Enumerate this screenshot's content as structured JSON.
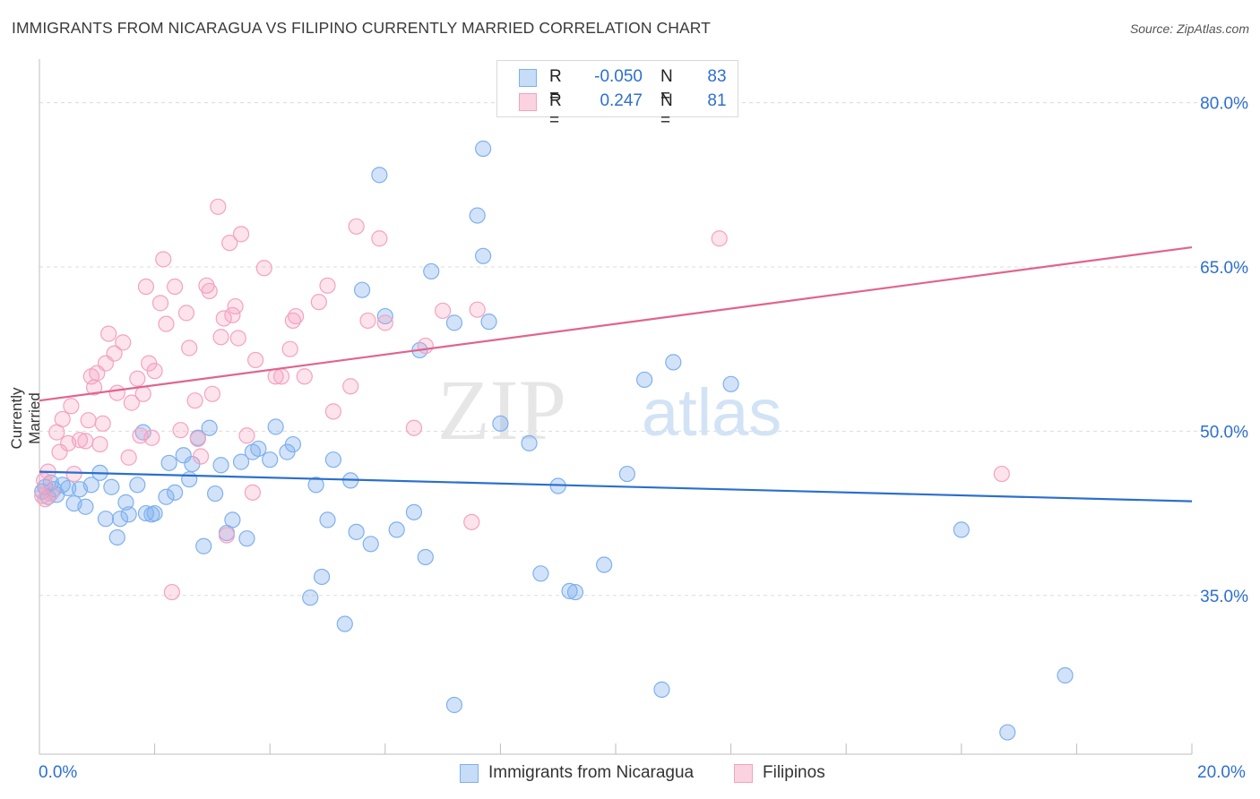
{
  "header": {
    "title": "IMMIGRANTS FROM NICARAGUA VS FILIPINO CURRENTLY MARRIED CORRELATION CHART",
    "source": "Source: ZipAtlas.com"
  },
  "watermark": {
    "zip": "ZIP",
    "atlas": "atlas"
  },
  "legend": {
    "rows": [
      {
        "r_label": "R =",
        "r_value": "-0.050",
        "n_label": "N =",
        "n_value": "83",
        "color": "#7fb0ee"
      },
      {
        "r_label": "R =",
        "r_value": "0.247",
        "n_label": "N =",
        "n_value": "81",
        "color": "#f4a3bf"
      }
    ]
  },
  "bottom_legend": [
    {
      "label": "Immigrants from Nicaragua",
      "color": "#7fb0ee"
    },
    {
      "label": "Filipinos",
      "color": "#f4a3bf"
    }
  ],
  "chart_data": {
    "type": "scatter",
    "title": "IMMIGRANTS FROM NICARAGUA VS FILIPINO CURRENTLY MARRIED CORRELATION CHART",
    "xlabel": "",
    "ylabel": "Currently Married",
    "xlim": [
      0,
      20
    ],
    "ylim": [
      20.5,
      83
    ],
    "x_tick_labels": [
      "0.0%",
      "20.0%"
    ],
    "y_ticks": [
      35,
      50,
      65,
      80
    ],
    "y_tick_labels": [
      "35.0%",
      "50.0%",
      "65.0%",
      "80.0%"
    ],
    "grid": true,
    "series": [
      {
        "name": "Immigrants from Nicaragua",
        "color": "#7fb0ee",
        "line_color": "#2a6fcf",
        "trend": [
          [
            0,
            46.3
          ],
          [
            20,
            43.6
          ]
        ],
        "points": [
          [
            0.1,
            44.9
          ],
          [
            0.15,
            44.0
          ],
          [
            0.2,
            45.3
          ],
          [
            0.25,
            44.7
          ],
          [
            0.3,
            44.2
          ],
          [
            0.4,
            45.1
          ],
          [
            0.5,
            44.8
          ],
          [
            0.6,
            43.4
          ],
          [
            0.7,
            44.7
          ],
          [
            0.8,
            43.1
          ],
          [
            0.9,
            45.1
          ],
          [
            1.05,
            46.2
          ],
          [
            1.15,
            42.0
          ],
          [
            1.25,
            44.9
          ],
          [
            1.35,
            40.3
          ],
          [
            1.4,
            42.0
          ],
          [
            1.5,
            43.5
          ],
          [
            1.55,
            42.4
          ],
          [
            1.7,
            45.1
          ],
          [
            1.8,
            49.9
          ],
          [
            1.85,
            42.5
          ],
          [
            1.95,
            42.4
          ],
          [
            2.0,
            42.5
          ],
          [
            2.2,
            44.0
          ],
          [
            2.25,
            47.1
          ],
          [
            2.35,
            44.4
          ],
          [
            2.5,
            47.8
          ],
          [
            2.6,
            45.6
          ],
          [
            2.65,
            47.0
          ],
          [
            2.75,
            49.4
          ],
          [
            2.85,
            39.5
          ],
          [
            2.95,
            50.3
          ],
          [
            3.05,
            44.3
          ],
          [
            3.15,
            46.9
          ],
          [
            3.25,
            40.7
          ],
          [
            3.35,
            41.9
          ],
          [
            3.5,
            47.2
          ],
          [
            3.6,
            40.2
          ],
          [
            3.7,
            48.1
          ],
          [
            3.8,
            48.4
          ],
          [
            4.0,
            47.4
          ],
          [
            4.1,
            50.4
          ],
          [
            4.3,
            48.1
          ],
          [
            4.4,
            48.8
          ],
          [
            4.7,
            34.8
          ],
          [
            4.8,
            45.1
          ],
          [
            4.9,
            36.7
          ],
          [
            5.0,
            41.9
          ],
          [
            5.1,
            47.4
          ],
          [
            5.3,
            32.4
          ],
          [
            5.4,
            45.5
          ],
          [
            5.5,
            40.8
          ],
          [
            5.6,
            62.9
          ],
          [
            5.75,
            39.7
          ],
          [
            5.9,
            73.4
          ],
          [
            6.0,
            60.5
          ],
          [
            6.2,
            41.0
          ],
          [
            6.5,
            42.6
          ],
          [
            6.6,
            57.4
          ],
          [
            6.7,
            38.5
          ],
          [
            6.8,
            64.6
          ],
          [
            7.2,
            25.0
          ],
          [
            7.2,
            59.9
          ],
          [
            7.6,
            69.7
          ],
          [
            7.7,
            66.0
          ],
          [
            7.7,
            75.8
          ],
          [
            7.8,
            60.0
          ],
          [
            8.0,
            50.7
          ],
          [
            8.5,
            48.9
          ],
          [
            8.7,
            37.0
          ],
          [
            9.0,
            45.0
          ],
          [
            9.2,
            35.4
          ],
          [
            9.3,
            35.3
          ],
          [
            9.8,
            37.8
          ],
          [
            10.2,
            46.1
          ],
          [
            10.5,
            54.7
          ],
          [
            10.8,
            26.4
          ],
          [
            11.0,
            56.3
          ],
          [
            12.0,
            54.3
          ],
          [
            16.0,
            41.0
          ],
          [
            16.8,
            22.5
          ],
          [
            17.8,
            27.7
          ],
          [
            0.05,
            44.5
          ]
        ]
      },
      {
        "name": "Filipinos",
        "color": "#f4a3bf",
        "line_color": "#e0648f",
        "trend": [
          [
            0,
            52.8
          ],
          [
            20,
            66.8
          ]
        ],
        "points": [
          [
            0.05,
            44.1
          ],
          [
            0.1,
            43.8
          ],
          [
            0.15,
            46.3
          ],
          [
            0.2,
            44.3
          ],
          [
            0.3,
            49.9
          ],
          [
            0.35,
            48.1
          ],
          [
            0.4,
            51.1
          ],
          [
            0.5,
            48.9
          ],
          [
            0.55,
            52.3
          ],
          [
            0.6,
            46.1
          ],
          [
            0.7,
            49.2
          ],
          [
            0.8,
            49.1
          ],
          [
            0.85,
            51.0
          ],
          [
            0.9,
            55.0
          ],
          [
            0.95,
            54.0
          ],
          [
            1.0,
            55.3
          ],
          [
            1.05,
            48.8
          ],
          [
            1.1,
            50.7
          ],
          [
            1.15,
            56.2
          ],
          [
            1.2,
            58.9
          ],
          [
            1.3,
            57.1
          ],
          [
            1.35,
            53.5
          ],
          [
            1.45,
            58.1
          ],
          [
            1.55,
            47.6
          ],
          [
            1.6,
            52.6
          ],
          [
            1.7,
            54.8
          ],
          [
            1.75,
            49.6
          ],
          [
            1.8,
            53.4
          ],
          [
            1.85,
            63.2
          ],
          [
            1.9,
            56.2
          ],
          [
            1.95,
            49.4
          ],
          [
            2.0,
            55.5
          ],
          [
            2.1,
            61.7
          ],
          [
            2.15,
            65.7
          ],
          [
            2.2,
            59.8
          ],
          [
            2.3,
            35.3
          ],
          [
            2.35,
            63.2
          ],
          [
            2.45,
            50.1
          ],
          [
            2.55,
            60.8
          ],
          [
            2.6,
            57.6
          ],
          [
            2.7,
            52.8
          ],
          [
            2.75,
            49.3
          ],
          [
            2.8,
            47.7
          ],
          [
            2.9,
            63.3
          ],
          [
            2.95,
            62.8
          ],
          [
            3.0,
            53.4
          ],
          [
            3.1,
            70.5
          ],
          [
            3.15,
            58.6
          ],
          [
            3.2,
            60.3
          ],
          [
            3.25,
            40.5
          ],
          [
            3.3,
            67.2
          ],
          [
            3.35,
            60.6
          ],
          [
            3.4,
            61.4
          ],
          [
            3.45,
            58.5
          ],
          [
            3.5,
            68.0
          ],
          [
            3.6,
            49.6
          ],
          [
            3.7,
            44.4
          ],
          [
            3.75,
            56.5
          ],
          [
            3.9,
            64.9
          ],
          [
            4.1,
            55.0
          ],
          [
            4.2,
            55.0
          ],
          [
            4.35,
            57.5
          ],
          [
            4.4,
            60.1
          ],
          [
            4.45,
            60.5
          ],
          [
            4.6,
            55.0
          ],
          [
            4.85,
            61.8
          ],
          [
            5.0,
            63.3
          ],
          [
            5.1,
            51.8
          ],
          [
            5.4,
            54.1
          ],
          [
            5.5,
            68.7
          ],
          [
            5.7,
            60.1
          ],
          [
            5.9,
            67.6
          ],
          [
            6.0,
            59.9
          ],
          [
            6.5,
            50.3
          ],
          [
            6.7,
            57.8
          ],
          [
            7.0,
            61.0
          ],
          [
            7.5,
            41.7
          ],
          [
            7.6,
            61.1
          ],
          [
            11.8,
            67.6
          ],
          [
            16.7,
            46.1
          ],
          [
            0.08,
            45.5
          ]
        ]
      }
    ]
  }
}
